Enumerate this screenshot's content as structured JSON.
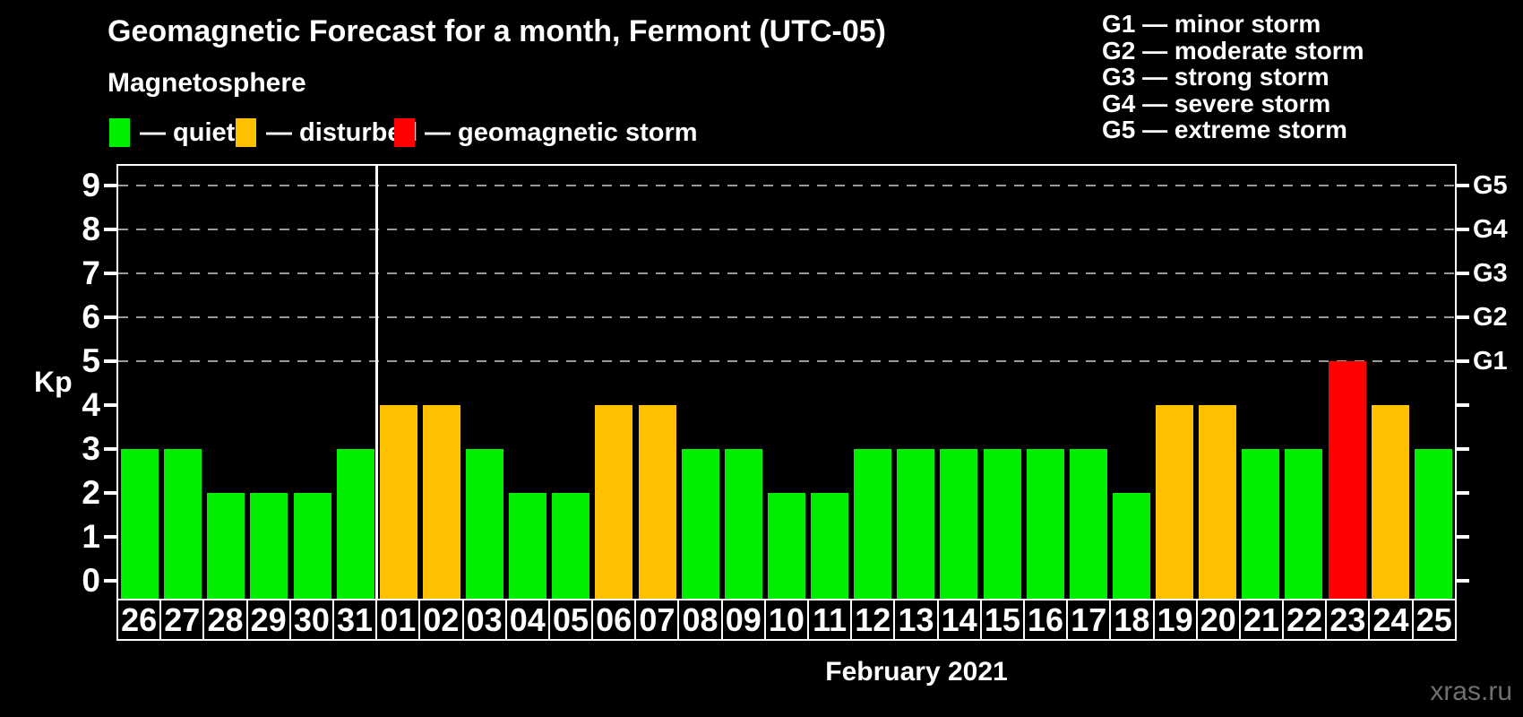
{
  "title": "Geomagnetic Forecast for a month, Fermont (UTC-05)",
  "subtitle": "Magnetosphere",
  "legend": {
    "items": [
      {
        "label": "— quiet",
        "status": "quiet",
        "color": "#00ee00"
      },
      {
        "label": "— disturbed",
        "status": "disturbed",
        "color": "#ffc000"
      },
      {
        "label": "— geomagnetic storm",
        "status": "storm",
        "color": "#ff0000"
      }
    ]
  },
  "g_legend": [
    "G1 — minor storm",
    "G2 — moderate storm",
    "G3 — strong storm",
    "G4 — severe storm",
    "G5 — extreme storm"
  ],
  "axis": {
    "y_label": "Kp",
    "y_ticks": [
      0,
      1,
      2,
      3,
      4,
      5,
      6,
      7,
      8,
      9
    ],
    "gridline_values": [
      5,
      6,
      7,
      8,
      9
    ],
    "right_labels": [
      {
        "label": "G1",
        "value": 5
      },
      {
        "label": "G2",
        "value": 6
      },
      {
        "label": "G3",
        "value": 7
      },
      {
        "label": "G4",
        "value": 8
      },
      {
        "label": "G5",
        "value": 9
      }
    ],
    "x_label": "February 2021"
  },
  "watermark": "xras.ru",
  "chart_data": {
    "type": "bar",
    "title": "Geomagnetic Forecast for a month, Fermont (UTC-05)",
    "subtitle": "Magnetosphere",
    "xlabel": "February 2021",
    "ylabel": "Kp",
    "ylim": [
      0,
      9
    ],
    "grid": "dashed horizontal at 5..9",
    "legend_position": "top",
    "categories": [
      "26",
      "27",
      "28",
      "29",
      "30",
      "31",
      "01",
      "02",
      "03",
      "04",
      "05",
      "06",
      "07",
      "08",
      "09",
      "10",
      "11",
      "12",
      "13",
      "14",
      "15",
      "16",
      "17",
      "18",
      "19",
      "20",
      "21",
      "22",
      "23",
      "24",
      "25"
    ],
    "values": [
      3,
      3,
      2,
      2,
      2,
      3,
      4,
      4,
      3,
      2,
      2,
      4,
      4,
      3,
      3,
      2,
      2,
      3,
      3,
      3,
      3,
      3,
      3,
      2,
      4,
      4,
      3,
      3,
      5,
      4,
      3
    ],
    "statuses": [
      "quiet",
      "quiet",
      "quiet",
      "quiet",
      "quiet",
      "quiet",
      "disturbed",
      "disturbed",
      "quiet",
      "quiet",
      "quiet",
      "disturbed",
      "disturbed",
      "quiet",
      "quiet",
      "quiet",
      "quiet",
      "quiet",
      "quiet",
      "quiet",
      "quiet",
      "quiet",
      "quiet",
      "quiet",
      "disturbed",
      "disturbed",
      "quiet",
      "quiet",
      "storm",
      "disturbed",
      "quiet"
    ],
    "colors": {
      "quiet": "#00ee00",
      "disturbed": "#ffc000",
      "storm": "#ff0000"
    },
    "month_separator_index": 6,
    "right_axis": {
      "G1": 5,
      "G2": 6,
      "G3": 7,
      "G4": 8,
      "G5": 9
    }
  }
}
